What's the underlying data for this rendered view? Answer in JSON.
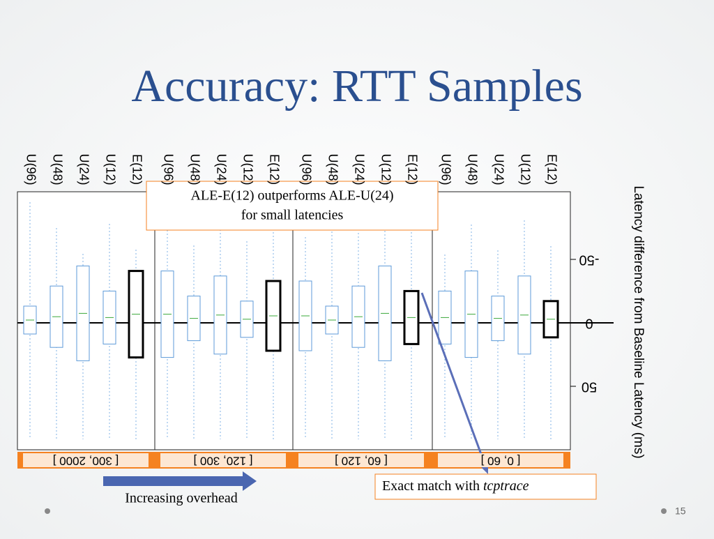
{
  "slide": {
    "title": "Accuracy: RTT Samples",
    "axis_label": "Latency difference from Baseline Latency (ms)",
    "ticks": [
      -50,
      0,
      50
    ],
    "panels": [
      {
        "bin": "[ 300, 2000 ]",
        "categories": [
          "U(96)",
          "U(48)",
          "U(24)",
          "U(12)",
          "E(12)"
        ]
      },
      {
        "bin": "[ 120, 300 ]",
        "categories": [
          "U(96)",
          "U(48)",
          "U(24)",
          "U(12)",
          "E(12)"
        ]
      },
      {
        "bin": "[ 60, 120 ]",
        "categories": [
          "U(96)",
          "U(48)",
          "U(24)",
          "U(12)",
          "E(12)"
        ]
      },
      {
        "bin": "[ 0, 60 ]",
        "categories": [
          "U(96)",
          "U(48)",
          "U(24)",
          "U(12)",
          "E(12)"
        ]
      }
    ],
    "callout_top": [
      "ALE-E(12) outperforms ALE-U(24)",
      "for small latencies"
    ],
    "callout_bottom": {
      "text": "Exact match with ",
      "emphasis": "tcptrace"
    },
    "arrow_label": "Increasing overhead",
    "page_number": "15"
  }
}
